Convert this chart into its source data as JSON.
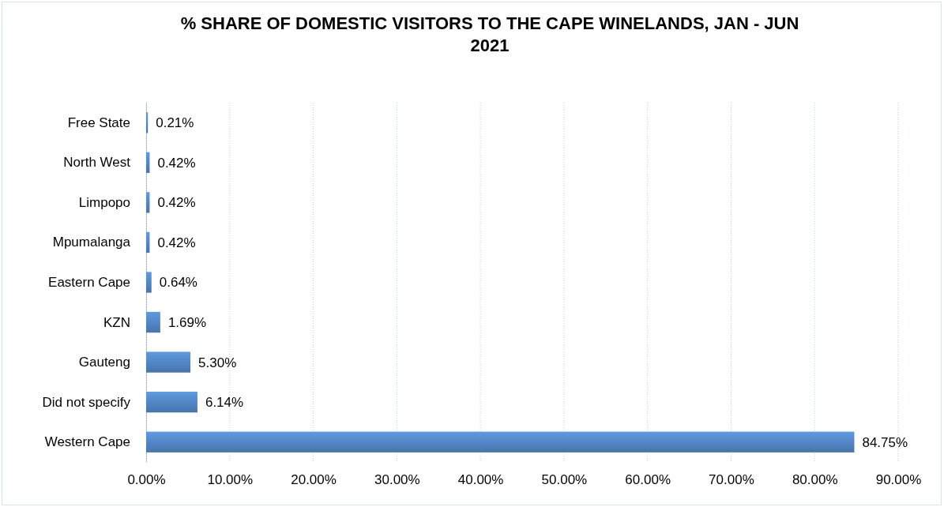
{
  "chart_data": {
    "type": "bar",
    "orientation": "horizontal",
    "title": "% SHARE OF DOMESTIC VISITORS TO THE CAPE WINELANDS, JAN - JUN 2021",
    "categories": [
      "Free State",
      "North West",
      "Limpopo",
      "Mpumalanga",
      "Eastern Cape",
      "KZN",
      "Gauteng",
      "Did not specify",
      "Western Cape"
    ],
    "values": [
      0.21,
      0.42,
      0.42,
      0.42,
      0.64,
      1.69,
      5.3,
      6.14,
      84.75
    ],
    "value_labels": [
      "0.21%",
      "0.42%",
      "0.42%",
      "0.42%",
      "0.64%",
      "1.69%",
      "5.30%",
      "6.14%",
      "84.75%"
    ],
    "color": "#4f81bd",
    "xlim": [
      0,
      90
    ],
    "xticks": [
      {
        "value": 0,
        "label": "0.00%"
      },
      {
        "value": 10,
        "label": "10.00%"
      },
      {
        "value": 20,
        "label": "20.00%"
      },
      {
        "value": 30,
        "label": "30.00%"
      },
      {
        "value": 40,
        "label": "40.00%"
      },
      {
        "value": 50,
        "label": "50.00%"
      },
      {
        "value": 60,
        "label": "60.00%"
      },
      {
        "value": 70,
        "label": "70.00%"
      },
      {
        "value": 80,
        "label": "80.00%"
      },
      {
        "value": 90,
        "label": "90.00%"
      }
    ],
    "grid": "x"
  }
}
